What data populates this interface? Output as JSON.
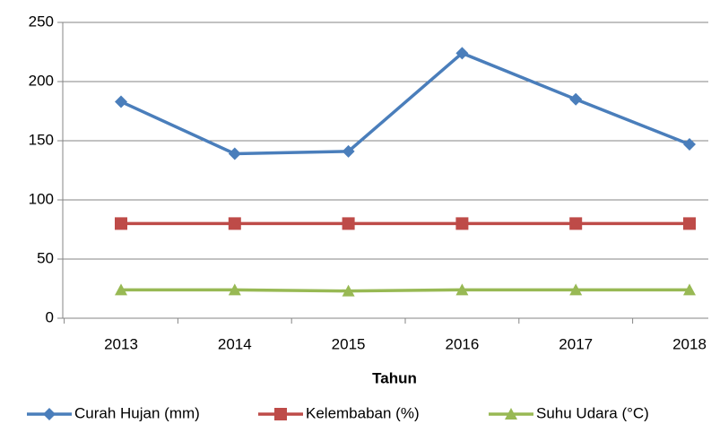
{
  "chart_data": {
    "type": "line",
    "x_label": "Tahun",
    "categories": [
      "2013",
      "2014",
      "2015",
      "2016",
      "2017",
      "2018"
    ],
    "series": [
      {
        "name": "Curah Hujan (mm)",
        "color": "#4a7ebb",
        "marker": "diamond",
        "values": [
          183,
          139,
          141,
          224,
          185,
          147
        ]
      },
      {
        "name": "Kelembaban (%)",
        "color": "#be4b48",
        "marker": "square",
        "values": [
          80,
          80,
          80,
          80,
          80,
          80
        ]
      },
      {
        "name": "Suhu Udara (°C)",
        "color": "#98b954",
        "marker": "triangle",
        "values": [
          24,
          24,
          23,
          24,
          24,
          24
        ]
      }
    ],
    "ylim": [
      0,
      250
    ],
    "yticks": [
      0,
      50,
      100,
      150,
      200,
      250
    ],
    "grid": true,
    "legend": "bottom"
  }
}
